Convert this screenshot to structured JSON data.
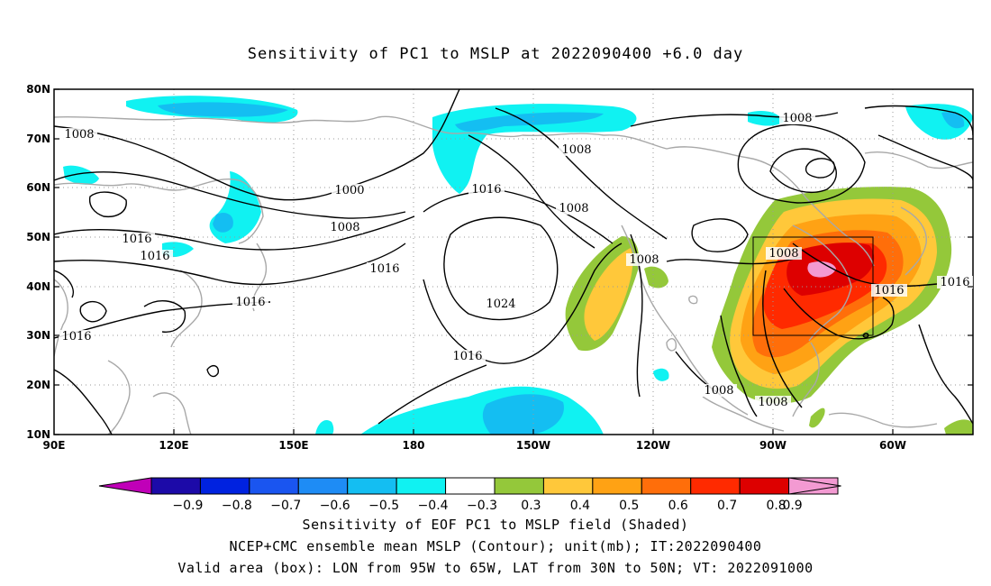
{
  "title": "Sensitivity of PC1 to MSLP at 2022090400 +6.0 day",
  "axes": {
    "lat_labels": [
      "80N",
      "70N",
      "60N",
      "50N",
      "40N",
      "30N",
      "20N",
      "10N"
    ],
    "lon_labels": [
      "90E",
      "120E",
      "150E",
      "180",
      "150W",
      "120W",
      "90W",
      "60W"
    ]
  },
  "colorbar": {
    "values": [
      "−0.9",
      "−0.8",
      "−0.7",
      "−0.6",
      "−0.5",
      "−0.4",
      "−0.3",
      "0.3",
      "0.4",
      "0.5",
      "0.6",
      "0.7",
      "0.8",
      "0.9"
    ],
    "colors": [
      "#1c0aa8",
      "#0022e0",
      "#1a55f0",
      "#1e8cf5",
      "#14bef2",
      "#10f2f2",
      "#ffffff",
      "#94c83a",
      "#ffc83a",
      "#ffa214",
      "#ff6e0a",
      "#ff2a00",
      "#dd0000",
      "#f39ad2"
    ],
    "low_end_color": "#c000b8",
    "high_end_color": "#f39ad2"
  },
  "contour_labels": [
    {
      "text": "1008"
    },
    {
      "text": "1008"
    },
    {
      "text": "1008"
    },
    {
      "text": "1008"
    },
    {
      "text": "1008"
    },
    {
      "text": "1008"
    },
    {
      "text": "1008"
    },
    {
      "text": "1008"
    },
    {
      "text": "1008"
    },
    {
      "text": "1000"
    },
    {
      "text": "1016"
    },
    {
      "text": "1016"
    },
    {
      "text": "1016"
    },
    {
      "text": "1016"
    },
    {
      "text": "1016"
    },
    {
      "text": "1016"
    },
    {
      "text": "1016"
    },
    {
      "text": "1016"
    },
    {
      "text": "1016"
    },
    {
      "text": "1024"
    }
  ],
  "captions": [
    "Sensitivity of EOF PC1 to MSLP field (Shaded)",
    "NCEP+CMC ensemble mean MSLP (Contour); unit(mb); IT:2022090400",
    "Valid area (box): LON from 95W to 65W, LAT from 30N to 50N; VT: 2022091000"
  ]
}
